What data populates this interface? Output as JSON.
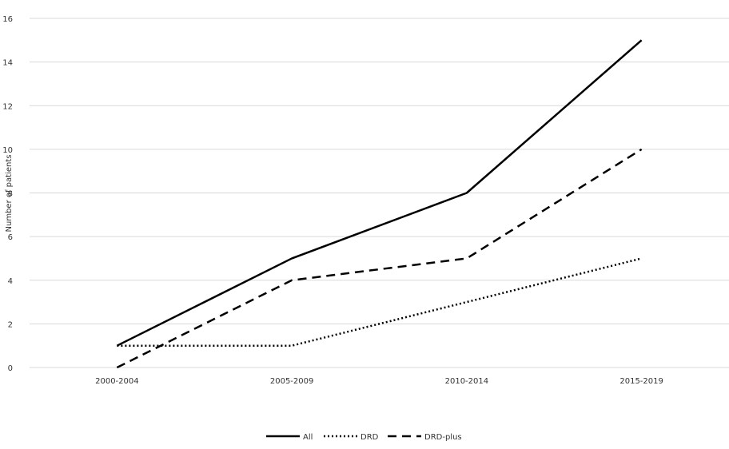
{
  "chart_data": {
    "type": "line",
    "categories": [
      "2000-2004",
      "2005-2009",
      "2010-2014",
      "2015-2019"
    ],
    "ylabel": "Number of patients",
    "xlabel": "",
    "ylim": [
      0,
      16
    ],
    "yticks": [
      "0",
      "2",
      "4",
      "6",
      "8",
      "10",
      "12",
      "14",
      "16"
    ],
    "grid": "horizontal",
    "legend_position": "bottom",
    "series": [
      {
        "name": "All",
        "values": [
          1,
          5,
          8,
          15
        ],
        "style": "solid",
        "color": "#000000"
      },
      {
        "name": "DRD",
        "values": [
          1,
          1,
          3,
          5
        ],
        "style": "dotted",
        "color": "#000000"
      },
      {
        "name": "DRD-plus",
        "values": [
          0,
          4,
          5,
          10
        ],
        "style": "dashed",
        "color": "#000000"
      }
    ]
  }
}
